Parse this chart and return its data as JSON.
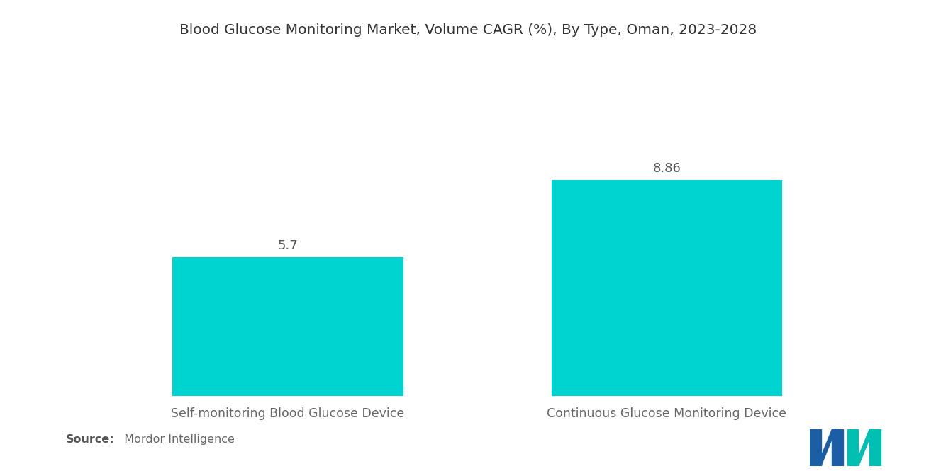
{
  "title": "Blood Glucose Monitoring Market, Volume CAGR (%), By Type, Oman, 2023-2028",
  "categories": [
    "Self-monitoring Blood Glucose Device",
    "Continuous Glucose Monitoring Device"
  ],
  "values": [
    5.7,
    8.86
  ],
  "bar_color": "#00D4D0",
  "value_labels": [
    "5.7",
    "8.86"
  ],
  "source_bold": "Source:",
  "source_normal": "  Mordor Intelligence",
  "background_color": "#ffffff",
  "title_fontsize": 14.5,
  "label_fontsize": 12.5,
  "value_fontsize": 13,
  "source_fontsize": 11.5,
  "ylim": [
    0,
    12
  ],
  "bar_width": 0.28,
  "x_positions": [
    0.27,
    0.73
  ],
  "xlim": [
    0,
    1
  ],
  "logo_blue": "#1B5EA6",
  "logo_teal": "#00BFB3"
}
